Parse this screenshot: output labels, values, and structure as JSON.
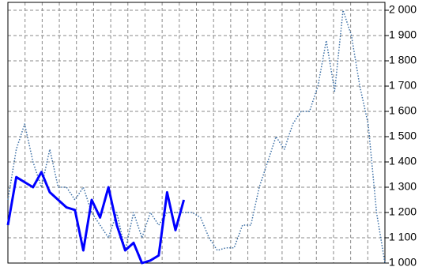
{
  "chart_data": {
    "type": "line",
    "x": [
      0,
      1,
      2,
      3,
      4,
      5,
      6,
      7,
      8,
      9,
      10,
      11,
      12,
      13,
      14,
      15,
      16,
      17,
      18,
      19,
      20,
      21,
      22,
      23,
      24,
      25,
      26,
      27,
      28,
      29,
      30,
      31,
      32,
      33,
      34,
      35,
      36,
      37,
      38,
      39,
      40,
      41,
      42,
      43,
      44,
      45
    ],
    "xlim": [
      0,
      45
    ],
    "ylim": [
      1000,
      2000
    ],
    "yticks": [
      {
        "value": 1000,
        "label": "1 000"
      },
      {
        "value": 1100,
        "label": "1 100"
      },
      {
        "value": 1200,
        "label": "1 200"
      },
      {
        "value": 1300,
        "label": "1 300"
      },
      {
        "value": 1400,
        "label": "1 400"
      },
      {
        "value": 1500,
        "label": "1 500"
      },
      {
        "value": 1600,
        "label": "1 600"
      },
      {
        "value": 1700,
        "label": "1 700"
      },
      {
        "value": 1800,
        "label": "1 800"
      },
      {
        "value": 1900,
        "label": "1 900"
      },
      {
        "value": 2000,
        "label": "2 000"
      }
    ],
    "grid": true,
    "series": [
      {
        "color": "#3a6ea5",
        "style": "dotted",
        "values": [
          1250,
          1450,
          1550,
          1400,
          1300,
          1450,
          1300,
          1300,
          1250,
          1300,
          1200,
          1150,
          1100,
          1200,
          1050,
          1200,
          1100,
          1200,
          1150,
          1200,
          1200,
          1200,
          1200,
          1180,
          1100,
          1050,
          1060,
          1060,
          1150,
          1150,
          1300,
          1400,
          1500,
          1450,
          1550,
          1600,
          1600,
          1700,
          1880,
          1680,
          2000,
          1900,
          1700,
          1550,
          1200,
          1000
        ]
      },
      {
        "color": "#0000ff",
        "style": "solid",
        "values": [
          1150,
          1340,
          1320,
          1300,
          1360,
          1280,
          1250,
          1220,
          1210,
          1050,
          1250,
          1180,
          1300,
          1150,
          1050,
          1080,
          1000,
          1010,
          1030,
          1280,
          1130,
          1250,
          null,
          null,
          null,
          null,
          null,
          null,
          null,
          null,
          null,
          null,
          null,
          null,
          null,
          null,
          null,
          null,
          null,
          null,
          null,
          null,
          null,
          null,
          null,
          null
        ]
      }
    ]
  }
}
